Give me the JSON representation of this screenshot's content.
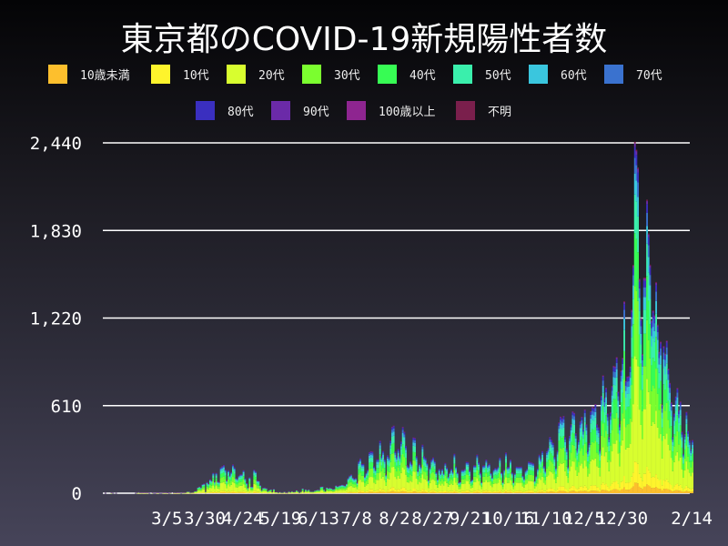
{
  "chart_data": {
    "type": "bar",
    "stacked": true,
    "title": "東京都のCOVID-19新規陽性者数",
    "xlabel": "",
    "ylabel": "",
    "ylim": [
      0,
      2440
    ],
    "y_ticks": [
      "0",
      "610",
      "1,220",
      "1,830",
      "2,440"
    ],
    "y_tick_values": [
      0,
      610,
      1220,
      1830,
      2440
    ],
    "x_ticks": [
      "3/5",
      "3/30",
      "4/24",
      "5/19",
      "6/13",
      "7/8",
      "8/2",
      "8/27",
      "9/21",
      "10/16",
      "11/10",
      "12/5",
      "12/30",
      "2/14"
    ],
    "grid": "horizontal",
    "legend_placement": "top",
    "series": [
      {
        "name": "10歳未満",
        "color": "#fdbf2d",
        "share": 0.03
      },
      {
        "name": "10代",
        "color": "#fef42c",
        "share": 0.06
      },
      {
        "name": "20代",
        "color": "#d8fe2f",
        "share": 0.3
      },
      {
        "name": "30代",
        "color": "#7bfe2f",
        "share": 0.2
      },
      {
        "name": "40代",
        "color": "#37fc54",
        "share": 0.15
      },
      {
        "name": "50代",
        "color": "#3aefac",
        "share": 0.11
      },
      {
        "name": "60代",
        "color": "#3ac6de",
        "share": 0.06
      },
      {
        "name": "70代",
        "color": "#3a72cf",
        "share": 0.045
      },
      {
        "name": "80代",
        "color": "#3a2fbf",
        "share": 0.03
      },
      {
        "name": "90代",
        "color": "#6b2aa8",
        "share": 0.01
      },
      {
        "name": "100歳以上",
        "color": "#8e2590",
        "share": 0.001
      },
      {
        "name": "不明",
        "color": "#7a1f4c",
        "share": 0.004
      }
    ],
    "daily_totals": [
      1,
      0,
      0,
      0,
      2,
      1,
      0,
      1,
      0,
      0,
      0,
      0,
      0,
      0,
      0,
      0,
      0,
      0,
      0,
      0,
      1,
      2,
      8,
      3,
      2,
      3,
      3,
      2,
      3,
      1,
      0,
      2,
      1,
      1,
      3,
      2,
      1,
      1,
      2,
      3,
      2,
      4,
      1,
      2,
      0,
      3,
      5,
      3,
      3,
      2,
      1,
      2,
      2,
      6,
      12,
      12,
      2,
      6,
      7,
      16,
      17,
      41,
      47,
      40,
      63,
      68,
      13,
      78,
      66,
      97,
      89,
      143,
      80,
      143,
      83,
      79,
      181,
      189,
      197,
      166,
      91,
      161,
      127,
      149,
      201,
      181,
      107,
      102,
      123,
      132,
      134,
      161,
      103,
      72,
      39,
      112,
      47,
      46,
      165,
      154,
      91,
      87,
      57,
      23,
      38,
      39,
      36,
      15,
      22,
      28,
      10,
      30,
      9,
      10,
      5,
      10,
      5,
      5,
      11,
      3,
      2,
      14,
      8,
      15,
      10,
      11,
      22,
      14,
      5,
      13,
      34,
      12,
      28,
      20,
      26,
      14,
      13,
      12,
      18,
      22,
      25,
      24,
      47,
      48,
      27,
      16,
      41,
      35,
      39,
      35,
      29,
      31,
      55,
      48,
      54,
      57,
      60,
      58,
      54,
      67,
      107,
      124,
      131,
      111,
      102,
      106,
      75,
      224,
      243,
      206,
      206,
      119,
      143,
      165,
      286,
      293,
      290,
      188,
      168,
      237,
      238,
      366,
      260,
      295,
      239,
      131,
      266,
      250,
      367,
      463,
      472,
      292,
      258,
      309,
      263,
      360,
      462,
      429,
      331,
      197,
      188,
      222,
      206,
      389,
      385,
      260,
      161,
      207,
      186,
      339,
      258,
      247,
      212,
      95,
      182,
      236,
      250,
      226,
      148,
      100,
      170,
      141,
      170,
      141,
      211,
      181,
      116,
      148,
      170,
      149,
      276,
      187,
      146,
      77,
      80,
      163,
      163,
      170,
      220,
      218,
      162,
      88,
      98,
      195,
      195,
      270,
      218,
      144,
      78,
      194,
      196,
      235,
      196,
      207,
      143,
      112,
      165,
      177,
      172,
      186,
      249,
      146,
      78,
      166,
      284,
      183,
      185,
      235,
      145,
      78,
      139,
      186,
      185,
      185,
      186,
      124,
      102,
      158,
      171,
      221,
      218,
      215,
      209,
      87,
      122,
      173,
      269,
      242,
      294,
      189,
      157,
      293,
      317,
      393,
      374,
      352,
      255,
      180,
      298,
      493,
      534,
      522,
      539,
      391,
      314,
      186,
      401,
      481,
      570,
      561,
      418,
      311,
      372,
      500,
      533,
      449,
      584,
      480,
      299,
      352,
      572,
      602,
      595,
      621,
      480,
      460,
      305,
      678,
      822,
      664,
      736,
      556,
      392,
      563,
      748,
      888,
      884,
      949,
      708,
      481,
      856,
      944,
      1337,
      783,
      814,
      816,
      884,
      1278,
      1591,
      2447,
      2392,
      2268,
      1494,
      1219,
      970,
      1502,
      1502,
      2044,
      1809,
      1592,
      1204,
      1274,
      1240,
      1471,
      1175,
      986,
      1056,
      618,
      1026,
      973,
      1064,
      868,
      769,
      633,
      393,
      556,
      676,
      734,
      577,
      639,
      429,
      276,
      412,
      568,
      434,
      369,
      307,
      371
    ]
  }
}
